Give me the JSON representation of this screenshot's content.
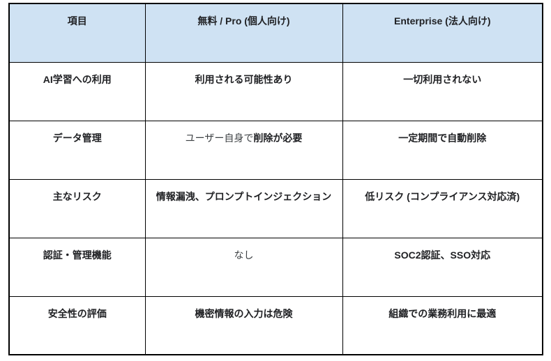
{
  "table": {
    "headers": [
      "項目",
      "無料 / Pro (個人向け)",
      "Enterprise (法人向け)"
    ],
    "rows": [
      {
        "label": "AI学習への利用",
        "personal": "利用される可能性あり",
        "enterprise": "一切利用されない"
      },
      {
        "label": "データ管理",
        "personal_regular": "ユーザー自身で",
        "personal_bold": "削除が必要",
        "enterprise": "一定期間で自動削除"
      },
      {
        "label": "主なリスク",
        "personal": "情報漏洩、プロンプトインジェクション",
        "enterprise": "低リスク (コンプライアンス対応済)"
      },
      {
        "label": "認証・管理機能",
        "personal": "なし",
        "enterprise": "SOC2認証、SSO対応"
      },
      {
        "label": "安全性の評価",
        "personal": "機密情報の入力は危険",
        "enterprise": "組織での業務利用に最適"
      }
    ]
  },
  "colors": {
    "header-bg": "#cfe2f3",
    "border": "#000000",
    "text": "#202124",
    "text-regular": "#3c4043",
    "page-bg": "#ffffff"
  }
}
